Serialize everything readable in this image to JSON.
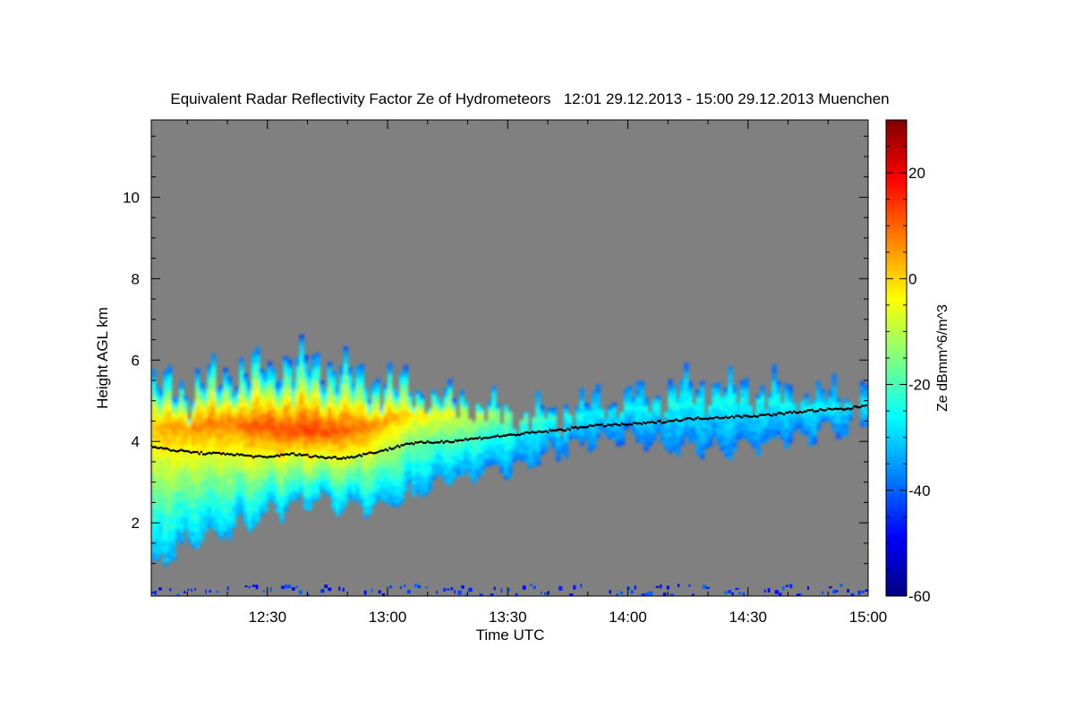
{
  "chart_data": {
    "type": "heatmap",
    "title": "Equivalent Radar Reflectivity Factor Ze of Hydrometeors   12:01 29.12.2013 - 15:00 29.12.2013 Muenchen",
    "xlabel": "Time UTC",
    "ylabel": "Height AGL km",
    "x_unit": "minutes after 12:00 UTC",
    "xlim": [
      1,
      180
    ],
    "ylim": [
      0.2,
      11.9
    ],
    "x_ticks": [
      {
        "value": 30,
        "label": "12:30"
      },
      {
        "value": 60,
        "label": "13:00"
      },
      {
        "value": 90,
        "label": "13:30"
      },
      {
        "value": 120,
        "label": "14:00"
      },
      {
        "value": 150,
        "label": "14:30"
      },
      {
        "value": 180,
        "label": "15:00"
      }
    ],
    "y_ticks": [
      {
        "value": 2,
        "label": "2"
      },
      {
        "value": 4,
        "label": "4"
      },
      {
        "value": 6,
        "label": "6"
      },
      {
        "value": 8,
        "label": "8"
      },
      {
        "value": 10,
        "label": "10"
      }
    ],
    "colorbar": {
      "label": "Ze dBmm^6/m^3",
      "range": [
        -60,
        30
      ],
      "ticks": [
        {
          "value": -60,
          "label": "-60"
        },
        {
          "value": -40,
          "label": "-40"
        },
        {
          "value": -20,
          "label": "-20"
        },
        {
          "value": 0,
          "label": "0"
        },
        {
          "value": 20,
          "label": "20"
        }
      ],
      "colormap": [
        "#000080",
        "#0000ff",
        "#0080ff",
        "#00ffff",
        "#80ff80",
        "#ffff00",
        "#ff8000",
        "#ff0000",
        "#800000"
      ]
    },
    "background_color": "#808080",
    "echo_profile": {
      "time": [
        1,
        5,
        10,
        15,
        20,
        25,
        30,
        35,
        40,
        45,
        50,
        55,
        60,
        65,
        70,
        75,
        80,
        85,
        90,
        95,
        100,
        105,
        110,
        115,
        120,
        125,
        130,
        135,
        140,
        145,
        150,
        155,
        160,
        165,
        170,
        175,
        180
      ],
      "top_km": [
        5.4,
        5.3,
        5.2,
        5.5,
        5.6,
        5.7,
        5.8,
        5.9,
        5.8,
        5.7,
        5.6,
        5.5,
        5.3,
        5.2,
        5.1,
        5.0,
        4.9,
        4.7,
        4.6,
        4.5,
        4.6,
        4.7,
        4.8,
        4.9,
        5.0,
        5.0,
        5.1,
        5.2,
        5.2,
        5.2,
        5.2,
        5.2,
        5.1,
        5.1,
        5.0,
        5.0,
        5.0
      ],
      "base_km": [
        0.8,
        1.3,
        1.6,
        1.7,
        1.8,
        2.0,
        2.3,
        2.4,
        2.6,
        2.5,
        2.4,
        2.4,
        2.5,
        2.7,
        2.9,
        3.1,
        3.1,
        3.3,
        3.4,
        3.5,
        3.7,
        3.9,
        4.1,
        4.1,
        4.1,
        4.0,
        3.9,
        3.9,
        3.8,
        3.8,
        3.9,
        4.0,
        4.1,
        4.2,
        4.3,
        4.4,
        4.5
      ],
      "max_ze_dbz": [
        2,
        5,
        6,
        7,
        8,
        10,
        12,
        12,
        13,
        12,
        10,
        8,
        4,
        -2,
        -4,
        -6,
        -8,
        -12,
        -16,
        -20,
        -22,
        -24,
        -26,
        -26,
        -26,
        -26,
        -25,
        -25,
        -24,
        -24,
        -25,
        -25,
        -26,
        -26,
        -27,
        -27,
        -27
      ],
      "max_ze_height_km": [
        4.3,
        4.3,
        4.3,
        4.4,
        4.4,
        4.3,
        4.3,
        4.2,
        4.2,
        4.2,
        4.2,
        4.3,
        4.5,
        4.6,
        4.6,
        4.6,
        4.6,
        4.6,
        4.6,
        4.5,
        4.5,
        4.6,
        4.6,
        4.6,
        4.7,
        4.8,
        4.9,
        4.9,
        5.0,
        5.0,
        4.9,
        4.9,
        4.8,
        4.8,
        4.8,
        4.8,
        4.8
      ]
    },
    "melting_layer": {
      "time": [
        1,
        5,
        10,
        15,
        20,
        25,
        30,
        35,
        40,
        45,
        50,
        55,
        60,
        65,
        70,
        75,
        80,
        85,
        90,
        95,
        100,
        105,
        110,
        115,
        120,
        125,
        130,
        135,
        140,
        145,
        150,
        155,
        160,
        165,
        170,
        175,
        180
      ],
      "height_km": [
        3.9,
        3.8,
        3.75,
        3.7,
        3.7,
        3.65,
        3.6,
        3.7,
        3.65,
        3.6,
        3.6,
        3.7,
        3.8,
        3.95,
        3.97,
        4.0,
        4.05,
        4.1,
        4.15,
        4.2,
        4.25,
        4.3,
        4.38,
        4.4,
        4.42,
        4.45,
        4.5,
        4.55,
        4.58,
        4.6,
        4.62,
        4.65,
        4.7,
        4.75,
        4.78,
        4.8,
        4.9
      ]
    },
    "low_level_clutter": {
      "height_km": [
        0.2,
        0.45
      ],
      "max_ze_dbz": -45
    }
  }
}
